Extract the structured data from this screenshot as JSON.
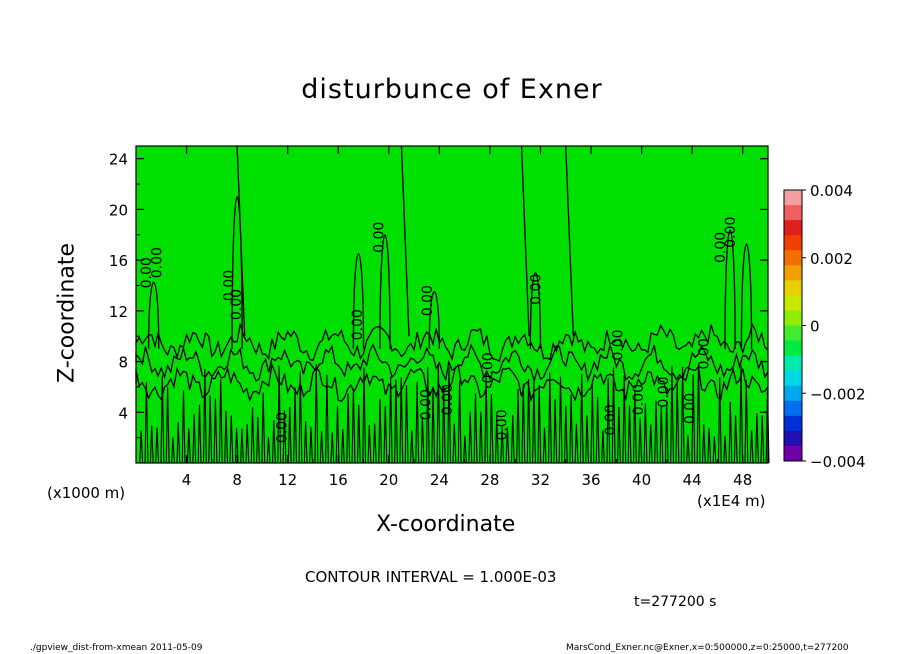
{
  "chart_data": {
    "type": "heatmap",
    "title": "disturbunce of Exner",
    "xlabel": "X-coordinate",
    "ylabel": "Z-coordinate",
    "xlim": [
      0,
      50
    ],
    "ylim": [
      0,
      25
    ],
    "x_ticks": [
      "4",
      "8",
      "12",
      "16",
      "20",
      "24",
      "28",
      "32",
      "36",
      "40",
      "44",
      "48"
    ],
    "y_ticks": [
      "4",
      "8",
      "12",
      "16",
      "20",
      "24"
    ],
    "x_unit": "(x1E4 m)",
    "y_unit": "(x1000 m)",
    "colorbar": {
      "min": -0.004,
      "max": 0.004,
      "labels": [
        "0.004",
        "0.002",
        "0",
        "−0.002",
        "−0.004"
      ],
      "colors": [
        "#f4a0a0",
        "#f06060",
        "#e02020",
        "#f04000",
        "#f07000",
        "#f0a000",
        "#e8d000",
        "#c8e800",
        "#90ec00",
        "#40ec30",
        "#00ea40",
        "#00eab0",
        "#00d8e8",
        "#00a8f0",
        "#0070f0",
        "#0030d8",
        "#2010b0",
        "#7000a8"
      ]
    },
    "field_color": "#00e000",
    "contour_label": "0.00",
    "contour_interval": "CONTOUR INTERVAL = 1.000E-03"
  },
  "time_label": "t=277200 s",
  "footer": {
    "left": "./gpview_dist-from-xmean  2011-05-09",
    "right": "MarsCond_Exner.nc@Exner,x=0:500000,z=0:25000,t=277200"
  }
}
